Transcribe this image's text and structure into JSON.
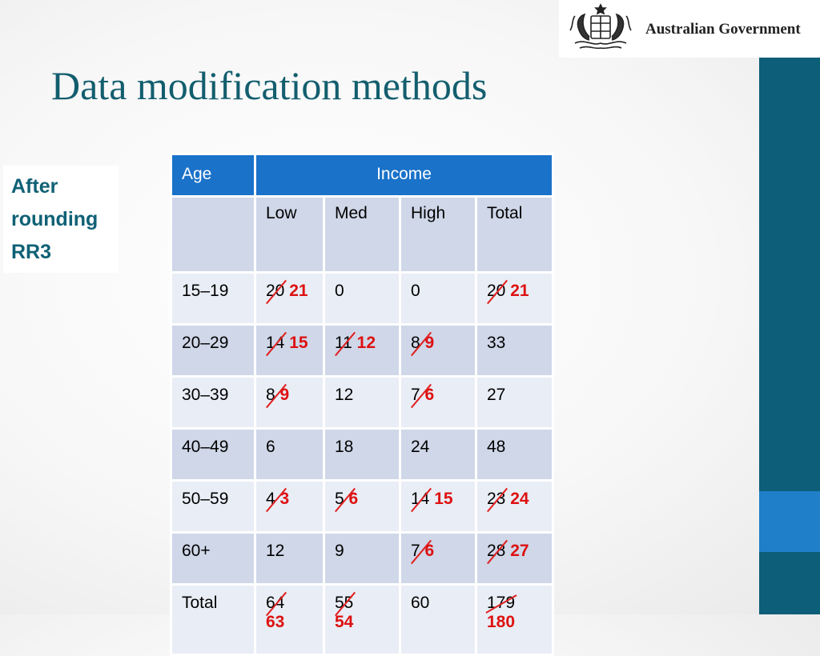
{
  "logo": {
    "text": "Australian Government"
  },
  "title": "Data modification methods",
  "note": {
    "lines": [
      "After",
      "rounding",
      "RR3"
    ]
  },
  "table": {
    "headers": {
      "age": "Age",
      "income": "Income"
    },
    "subheaders": [
      "Low",
      "Med",
      "High",
      "Total"
    ],
    "rows": [
      {
        "age": "15–19",
        "low": {
          "old": "20",
          "new": "21"
        },
        "med": {
          "value": "0"
        },
        "high": {
          "value": "0"
        },
        "total": {
          "old": "20",
          "new": "21"
        }
      },
      {
        "age": "20–29",
        "low": {
          "old": "14",
          "new": "15"
        },
        "med": {
          "old": "11",
          "new": "12"
        },
        "high": {
          "old": "8",
          "new": "9"
        },
        "total": {
          "value": "33"
        }
      },
      {
        "age": "30–39",
        "low": {
          "old": "8",
          "new": "9"
        },
        "med": {
          "value": "12"
        },
        "high": {
          "old": "7",
          "new": "6"
        },
        "total": {
          "value": "27"
        }
      },
      {
        "age": "40–49",
        "low": {
          "value": "6"
        },
        "med": {
          "value": "18"
        },
        "high": {
          "value": "24"
        },
        "total": {
          "value": "48"
        }
      },
      {
        "age": "50–59",
        "low": {
          "old": "4",
          "new": "3"
        },
        "med": {
          "old": "5",
          "new": "6"
        },
        "high": {
          "old": "14",
          "new": "15"
        },
        "total": {
          "old": "23",
          "new": "24"
        }
      },
      {
        "age": "60+",
        "low": {
          "value": "12"
        },
        "med": {
          "value": "9"
        },
        "high": {
          "old": "7",
          "new": "6"
        },
        "total": {
          "old": "28",
          "new": "27"
        }
      },
      {
        "age": "Total",
        "low": {
          "old": "64",
          "new": "63"
        },
        "med": {
          "old": "55",
          "new": "54"
        },
        "high": {
          "value": "60"
        },
        "total": {
          "old": "179",
          "new": "180"
        }
      }
    ]
  }
}
